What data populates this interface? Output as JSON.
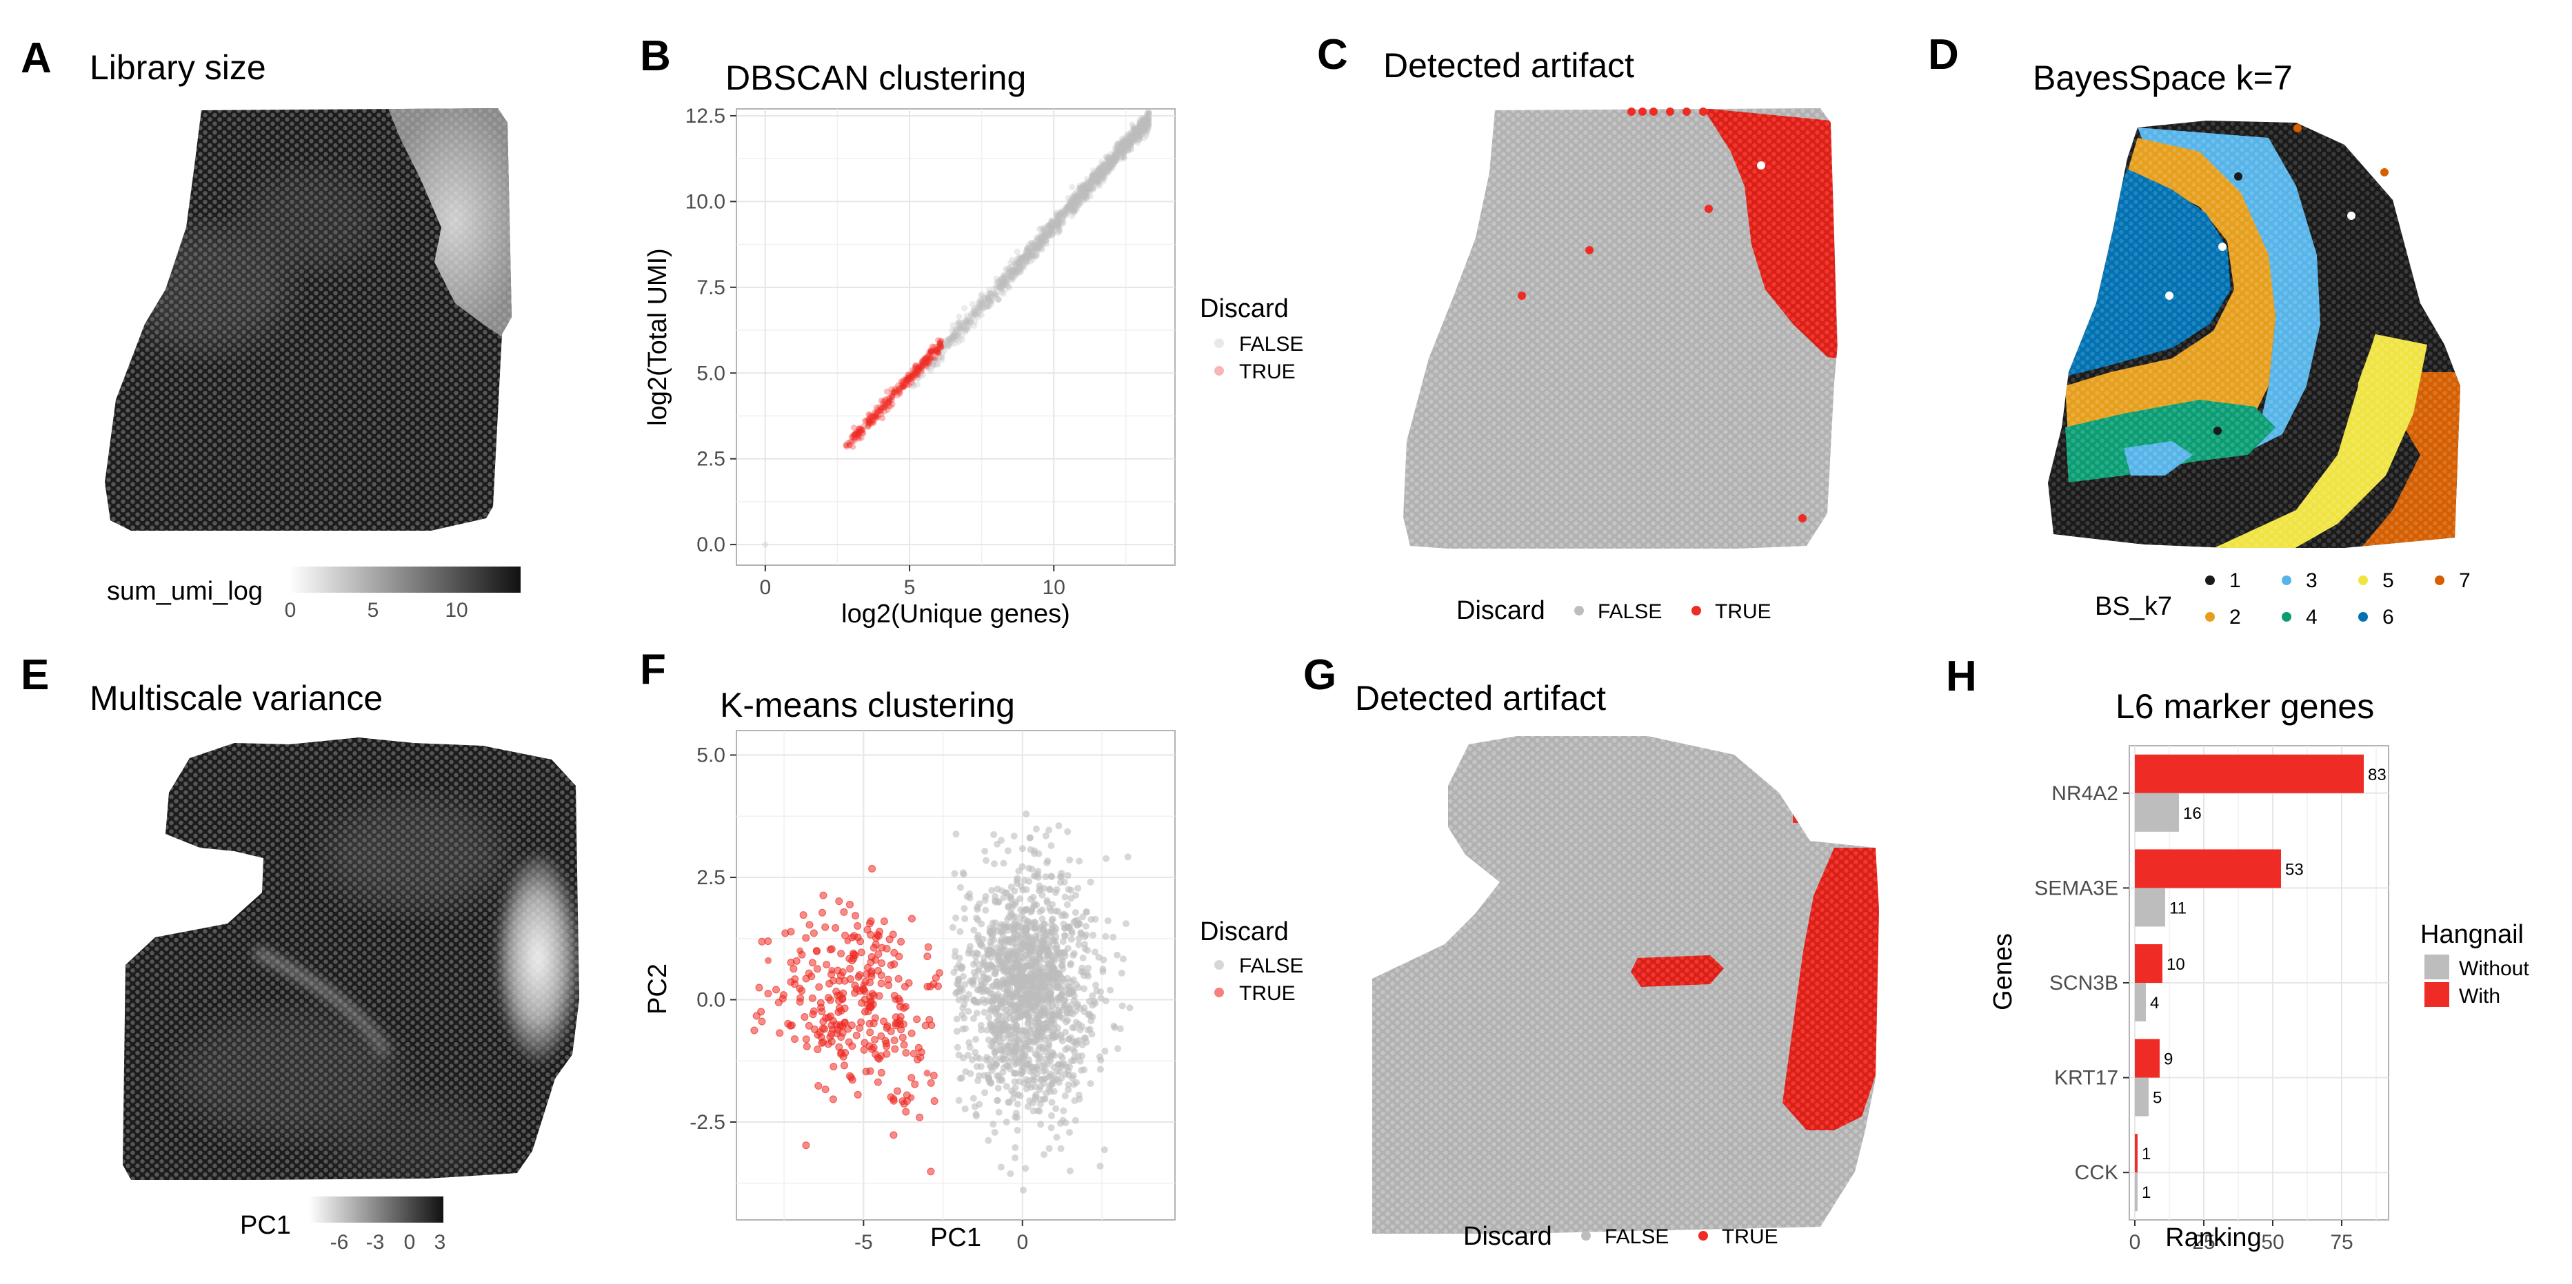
{
  "colors": {
    "red": "#ee2b24",
    "grey": "#bdbdbd",
    "dark": "#1f1f1f",
    "frame": "#b3b3b3"
  },
  "panels": {
    "A": {
      "letter": "A",
      "title": "Library size",
      "legend_title": "sum_umi_log",
      "legend_ticks": [
        "0",
        "5",
        "10"
      ]
    },
    "B": {
      "letter": "B",
      "title": "DBSCAN clustering"
    },
    "C": {
      "letter": "C",
      "title": "Detected artifact",
      "legend_title": "Discard",
      "legend_items": [
        "FALSE",
        "TRUE"
      ]
    },
    "D": {
      "letter": "D",
      "title": "BayesSpace k=7",
      "legend_title": "BS_k7",
      "legend_items": [
        "1",
        "2",
        "3",
        "4",
        "5",
        "6",
        "7"
      ]
    },
    "E": {
      "letter": "E",
      "title": "Multiscale variance",
      "legend_title": "PC1",
      "legend_ticks": [
        "-6",
        "-3",
        "0",
        "3"
      ]
    },
    "F": {
      "letter": "F",
      "title": "K-means clustering"
    },
    "G": {
      "letter": "G",
      "title": "Detected artifact",
      "legend_title": "Discard",
      "legend_items": [
        "FALSE",
        "TRUE"
      ]
    },
    "H": {
      "letter": "H",
      "title": "L6 marker genes"
    }
  },
  "bs_colors": [
    "#1a1a1a",
    "#e69f1d",
    "#56b4e9",
    "#0a9d73",
    "#f0e442",
    "#0071b2",
    "#d55e00"
  ],
  "chart_data": [
    {
      "panel": "B",
      "type": "scatter",
      "title": "DBSCAN clustering",
      "xlabel": "log2(Unique genes)",
      "ylabel": "log2(Total UMI)",
      "xlim": [
        -1,
        14.2
      ],
      "ylim": [
        -0.6,
        12.7
      ],
      "xticks": [
        "0",
        "5",
        "10"
      ],
      "yticks": [
        "0.0",
        "2.5",
        "5.0",
        "7.5",
        "10.0",
        "12.5"
      ],
      "legend_title": "Discard",
      "legend_position": "right",
      "series": [
        {
          "name": "FALSE",
          "color": "#bdbdbd",
          "x": [
            0,
            5.5,
            6.5,
            7.5,
            8.5,
            9.5,
            10.5,
            11.5,
            12.5,
            13.2
          ],
          "y": [
            0,
            5.4,
            6.4,
            7.3,
            8.2,
            9.2,
            10.1,
            10.9,
            11.6,
            12.0
          ]
        },
        {
          "name": "TRUE",
          "color": "#ee2b24",
          "x": [
            2.8,
            3.2,
            3.6,
            4.0,
            4.4,
            4.8,
            5.2,
            5.6,
            6.0
          ],
          "y": [
            2.9,
            3.2,
            3.6,
            3.9,
            4.3,
            4.6,
            5.0,
            5.3,
            5.6
          ]
        }
      ]
    },
    {
      "panel": "F",
      "type": "scatter",
      "title": "K-means clustering",
      "xlabel": "PC1",
      "ylabel": "PC2",
      "xlim": [
        -9,
        4.8
      ],
      "ylim": [
        -4.5,
        5.5
      ],
      "xticks": [
        "-5",
        "0"
      ],
      "yticks": [
        "-2.5",
        "0.0",
        "2.5",
        "5.0"
      ],
      "legend_title": "Discard",
      "legend_position": "right",
      "series": [
        {
          "name": "FALSE",
          "color": "#bdbdbd",
          "x": [
            -2.0,
            -1.0,
            0.0,
            1.0,
            2.0,
            3.0,
            0.5,
            -0.5,
            1.5
          ],
          "y": [
            0.0,
            1.0,
            0.5,
            -0.5,
            1.5,
            -1.0,
            2.5,
            -2.5,
            -3.5
          ]
        },
        {
          "name": "TRUE",
          "color": "#ee2b24",
          "x": [
            -8.0,
            -7.0,
            -6.0,
            -5.0,
            -4.0,
            -3.0,
            -3.5,
            -5.5
          ],
          "y": [
            0.8,
            1.0,
            0.6,
            0.3,
            0.0,
            -1.5,
            -2.0,
            1.2
          ]
        }
      ]
    },
    {
      "panel": "H",
      "type": "bar",
      "orientation": "horizontal",
      "title": "L6 marker genes",
      "xlabel": "Ranking",
      "ylabel": "Genes",
      "xlim": [
        -2,
        92
      ],
      "xticks": [
        "0",
        "25",
        "50",
        "75"
      ],
      "categories": [
        "NR4A2",
        "SEMA3E",
        "SCN3B",
        "KRT17",
        "CCK"
      ],
      "legend_title": "Hangnail",
      "legend_position": "right",
      "series": [
        {
          "name": "With",
          "color": "#ee2b24",
          "values": [
            83,
            53,
            10,
            9,
            1
          ]
        },
        {
          "name": "Without",
          "color": "#bdbdbd",
          "values": [
            16,
            11,
            4,
            5,
            1
          ]
        }
      ]
    }
  ]
}
